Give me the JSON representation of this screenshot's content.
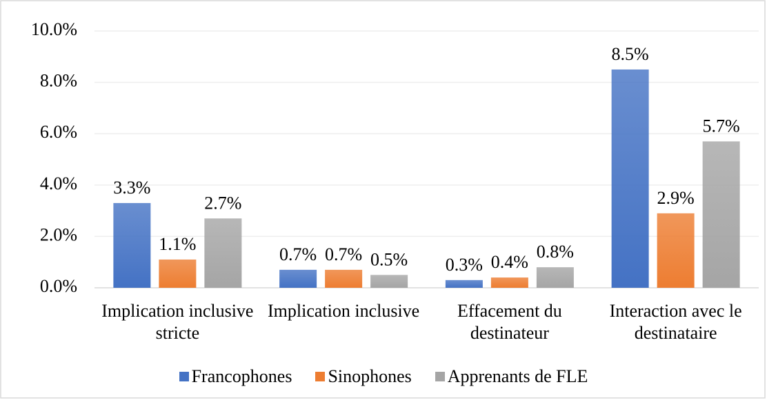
{
  "chart_data": {
    "type": "bar",
    "categories": [
      "Implication inclusive stricte",
      "Implication inclusive",
      "Effacement du destinateur",
      "Interaction avec le destinataire"
    ],
    "series": [
      {
        "name": "Francophones",
        "color": "#4472c4",
        "values": [
          3.3,
          0.7,
          0.3,
          8.5
        ],
        "value_labels": [
          "3.3%",
          "0.7%",
          "0.3%",
          "8.5%"
        ]
      },
      {
        "name": "Sinophones",
        "color": "#ed7d31",
        "values": [
          1.1,
          0.7,
          0.4,
          2.9
        ],
        "value_labels": [
          "1.1%",
          "0.7%",
          "0.4%",
          "2.9%"
        ]
      },
      {
        "name": "Apprenants de FLE",
        "color": "#a5a5a5",
        "values": [
          2.7,
          0.5,
          0.8,
          5.7
        ],
        "value_labels": [
          "2.7%",
          "0.5%",
          "0.8%",
          "5.7%"
        ]
      }
    ],
    "ylim": [
      0,
      10
    ],
    "yticks": [
      {
        "value": 0,
        "label": "0.0%"
      },
      {
        "value": 2,
        "label": "2.0%"
      },
      {
        "value": 4,
        "label": "4.0%"
      },
      {
        "value": 6,
        "label": "6.0%"
      },
      {
        "value": 8,
        "label": "8.0%"
      },
      {
        "value": 10,
        "label": "10.0%"
      }
    ],
    "grid": true,
    "legend": "bottom"
  }
}
